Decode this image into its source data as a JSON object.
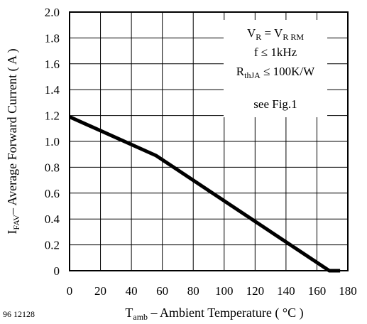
{
  "chart_data": {
    "type": "line",
    "figure_id": "96 12128",
    "xlabel": {
      "main": "T",
      "sub": "amb",
      "rest": " – Ambient Temperature ( °C )"
    },
    "ylabel": {
      "main": "I",
      "sub": "FAV",
      "rest": "– Average Forward Current ( A )"
    },
    "xlim": [
      0,
      180
    ],
    "ylim": [
      0,
      2.0
    ],
    "x_ticks": [
      0,
      20,
      40,
      60,
      80,
      100,
      120,
      140,
      160,
      180
    ],
    "y_ticks": [
      0,
      0.2,
      0.4,
      0.6,
      0.8,
      1.0,
      1.2,
      1.4,
      1.6,
      1.8,
      2.0
    ],
    "y_tick_labels": [
      "0",
      "0.2",
      "0.4",
      "0.6",
      "0.8",
      "1.0",
      "1.2",
      "1.4",
      "1.6",
      "1.8",
      "2.0"
    ],
    "x_grid_lines": [
      20,
      40,
      60,
      80,
      100,
      120,
      140,
      160
    ],
    "y_grid_lines": [
      0.2,
      0.4,
      0.6,
      0.8,
      1.0,
      1.2,
      1.4,
      1.6,
      1.8
    ],
    "grid": true,
    "series": [
      {
        "points": [
          [
            0,
            1.19
          ],
          [
            56,
            0.89
          ],
          [
            168,
            0.0
          ],
          [
            175,
            0.0
          ]
        ]
      }
    ],
    "annotations": {
      "line1": {
        "a": "V",
        "a_sub": "R",
        "eq": " = V",
        "b_sub": "R RM"
      },
      "line2": "f ≤ 1kHz",
      "line3": {
        "a": "R",
        "a_sub": "thJA",
        "rest": " ≤ 100K/W"
      },
      "line4": "see Fig.1"
    }
  }
}
